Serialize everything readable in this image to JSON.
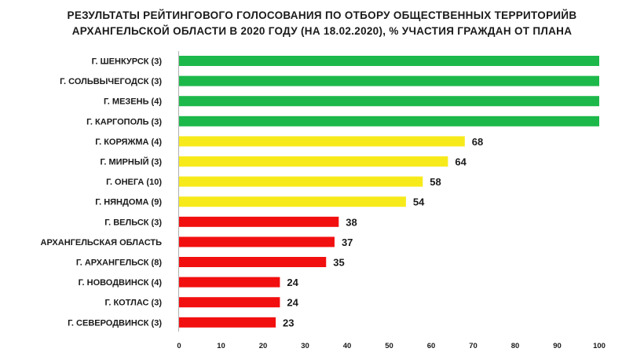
{
  "chart_data": {
    "type": "bar",
    "orientation": "horizontal",
    "title_lines": [
      "РЕЗУЛЬТАТЫ РЕЙТИНГОВОГО ГОЛОСОВАНИЯ ПО ОТБОРУ ОБЩЕСТВЕННЫХ ТЕРРИТОРИЙВ",
      "АРХАНГЕЛЬСКОЙ ОБЛАСТИ В 2020 ГОДУ (НА 18.02.2020), % УЧАСТИЯ ГРАЖДАН ОТ ПЛАНА"
    ],
    "categories": [
      "Г. ШЕНКУРСК (3)",
      "Г. СОЛЬВЫЧЕГОДСК (3)",
      "Г. МЕЗЕНЬ (4)",
      "Г. КАРГОПОЛЬ (3)",
      "Г. КОРЯЖМА (4)",
      "Г. МИРНЫЙ (3)",
      "Г. ОНЕГА (10)",
      "Г. НЯНДОМА (9)",
      "Г. ВЕЛЬСК (3)",
      "АРХАНГЕЛЬСКАЯ ОБЛАСТЬ",
      "Г. АРХАНГЕЛЬСК (8)",
      "Г. НОВОДВИНСК (4)",
      "Г. КОТЛАС (3)",
      "Г. СЕВЕРОДВИНСК (3)"
    ],
    "values": [
      100,
      100,
      100,
      100,
      68,
      64,
      58,
      54,
      38,
      37,
      35,
      24,
      24,
      23
    ],
    "data_labels": [
      "",
      "",
      "",
      "",
      "68",
      "64",
      "58",
      "54",
      "38",
      "37",
      "35",
      "24",
      "24",
      "23"
    ],
    "bar_colors": [
      "#1db84a",
      "#1db84a",
      "#1db84a",
      "#1db84a",
      "#f7ea1b",
      "#f7ea1b",
      "#f7ea1b",
      "#f7ea1b",
      "#f20f0f",
      "#f20f0f",
      "#f20f0f",
      "#f20f0f",
      "#f20f0f",
      "#f20f0f"
    ],
    "xlim": [
      0,
      100
    ],
    "xticks": [
      0,
      10,
      20,
      30,
      40,
      50,
      60,
      70,
      80,
      90,
      100
    ],
    "grid": false,
    "legend": "none"
  }
}
